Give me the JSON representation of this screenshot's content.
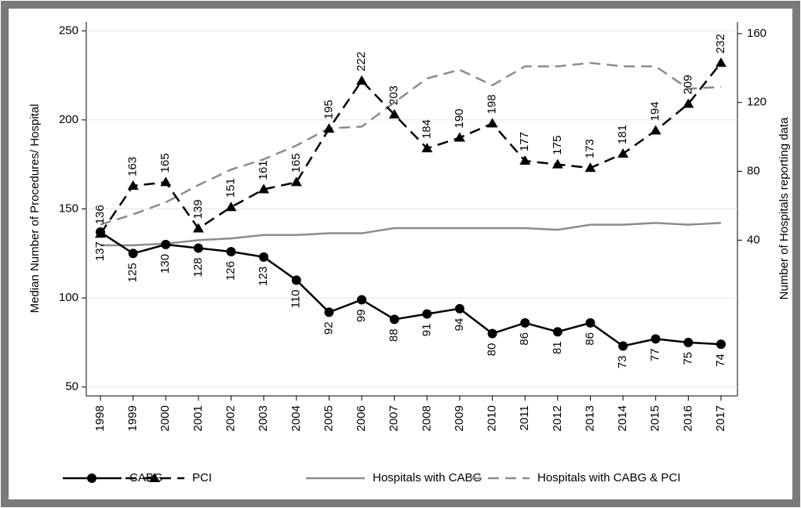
{
  "chart_data": {
    "type": "line",
    "categories": [
      "1998",
      "1999",
      "2000",
      "2001",
      "2002",
      "2003",
      "2004",
      "2005",
      "2006",
      "2007",
      "2008",
      "2009",
      "2010",
      "2011",
      "2012",
      "2013",
      "2014",
      "2015",
      "2016",
      "2017"
    ],
    "y_label": "Median Number of Procedures/ Hospital",
    "y2_label": "Number of Hospitals reporting data",
    "ylim": [
      45,
      255
    ],
    "yticks": [
      50,
      100,
      150,
      200,
      250
    ],
    "y2lim": [
      -50.5,
      166.8
    ],
    "y2ticks": [
      40,
      80,
      120,
      160
    ],
    "grid": true,
    "legend": "bottom",
    "series": [
      {
        "name": "CABG",
        "color": "#000000",
        "dash": "solid",
        "marker": "circle",
        "labels": "below",
        "values": [
          137,
          125,
          130,
          128,
          126,
          123,
          110,
          92,
          99,
          88,
          91,
          94,
          80,
          86,
          81,
          86,
          73,
          77,
          75,
          74
        ]
      },
      {
        "name": "PCI",
        "color": "#000000",
        "dash": "dashed",
        "marker": "triangle",
        "labels": "above",
        "values": [
          136,
          163,
          165,
          139,
          151,
          161,
          165,
          195,
          222,
          203,
          184,
          190,
          198,
          177,
          175,
          173,
          181,
          194,
          209,
          232
        ]
      },
      {
        "name": "Hospitals with CABG",
        "color": "#8c8c8c",
        "dash": "solid",
        "axis": "y2",
        "values": [
          37,
          37,
          38,
          40,
          41,
          43,
          43,
          44,
          44,
          47,
          47,
          47,
          47,
          47,
          46,
          49,
          49,
          50,
          49,
          50
        ]
      },
      {
        "name": "Hospitals with CABG & PCI",
        "color": "#8c8c8c",
        "dash": "dashed",
        "axis": "y2",
        "values": [
          49,
          55,
          62,
          72,
          81,
          87,
          95,
          105,
          106,
          120,
          134,
          139,
          130,
          141,
          141,
          143,
          141,
          141,
          128,
          129
        ]
      }
    ]
  }
}
